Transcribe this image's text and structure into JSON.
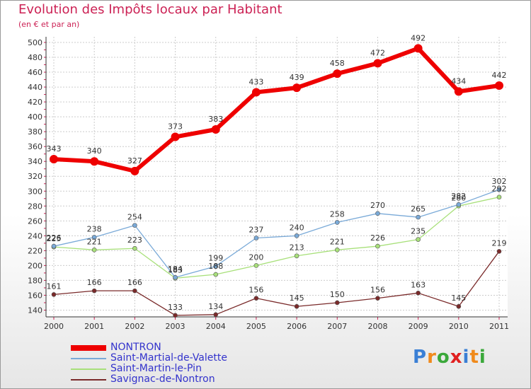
{
  "title": "Evolution des Impôts locaux par Habitant",
  "subtitle": "(en € et par an)",
  "logo": {
    "text": "Proxiti",
    "colors": [
      "#3a7fd5",
      "#f08a1c",
      "#3aa83a",
      "#e02020",
      "#3a7fd5",
      "#f08a1c",
      "#3aa83a"
    ]
  },
  "chart_data": {
    "type": "line",
    "x": [
      "2000",
      "2001",
      "2002",
      "2003",
      "2004",
      "2005",
      "2006",
      "2007",
      "2008",
      "2009",
      "2010",
      "2011"
    ],
    "ylim": [
      130,
      500
    ],
    "yticks": [
      140,
      160,
      180,
      200,
      220,
      240,
      260,
      280,
      300,
      320,
      340,
      360,
      380,
      400,
      420,
      440,
      460,
      480,
      500
    ],
    "grid": true,
    "legend_position": "bottom-left",
    "series": [
      {
        "name": "NONTRON",
        "color": "#ee0000",
        "values": [
          343,
          340,
          327,
          373,
          383,
          433,
          439,
          458,
          472,
          492,
          434,
          442
        ]
      },
      {
        "name": "Saint-Martial-de-Valette",
        "color": "#7aaad8",
        "values": [
          226,
          238,
          254,
          184,
          199,
          237,
          240,
          258,
          270,
          265,
          282,
          302
        ]
      },
      {
        "name": "Saint-Martin-le-Pin",
        "color": "#a8e07a",
        "values": [
          225,
          221,
          223,
          183,
          188,
          200,
          213,
          221,
          226,
          235,
          280,
          292
        ]
      },
      {
        "name": "Savignac-de-Nontron",
        "color": "#7a2a2a",
        "values": [
          161,
          166,
          166,
          133,
          134,
          156,
          145,
          150,
          156,
          163,
          145,
          219
        ]
      }
    ]
  }
}
